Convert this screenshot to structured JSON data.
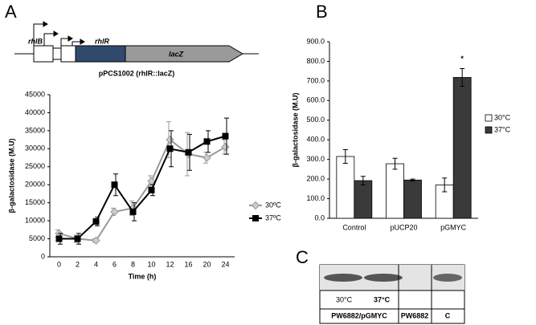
{
  "panels": [
    "A",
    "B",
    "C"
  ],
  "diagram": {
    "genes": [
      "rhlB",
      "rhlR",
      "lacZ"
    ],
    "caption": "pPCS1002 (rhlR::lacZ)"
  },
  "chart_data": [
    {
      "type": "line",
      "x_label": "Time (h)",
      "y_label": "β-galactosidase (M.U)",
      "categories": [
        "0",
        "2",
        "4",
        "6",
        "8",
        "10",
        "12",
        "16",
        "20",
        "24"
      ],
      "ylim": [
        0,
        45000
      ],
      "yticks": [
        0,
        5000,
        10000,
        15000,
        20000,
        25000,
        30000,
        35000,
        40000,
        45000
      ],
      "series": [
        {
          "name": "30ºC",
          "color": "#999999",
          "marker": "diamond",
          "values": [
            6500,
            5000,
            4500,
            12500,
            13500,
            21000,
            32500,
            28500,
            27500,
            30500
          ],
          "errors": [
            1000,
            1000,
            500,
            1000,
            2000,
            1500,
            5000,
            6000,
            1500,
            2000
          ]
        },
        {
          "name": "37ºC",
          "color": "#000000",
          "marker": "square",
          "values": [
            5000,
            5000,
            9800,
            20000,
            12500,
            18500,
            30000,
            29000,
            32000,
            33500
          ],
          "errors": [
            1500,
            1500,
            1200,
            3000,
            2500,
            1500,
            5000,
            5000,
            3000,
            5000
          ]
        }
      ]
    },
    {
      "type": "bar",
      "y_label": "β-galactosidase (M.U)",
      "annotation": "*",
      "categories": [
        "Control",
        "pUCP20",
        "pGMYC"
      ],
      "ylim": [
        0,
        900
      ],
      "yticks": [
        {
          "value": 0,
          "label": "0.0"
        },
        {
          "value": 100,
          "label": "100.0"
        },
        {
          "value": 200,
          "label": "200.0"
        },
        {
          "value": 300,
          "label": "300.0"
        },
        {
          "value": 400,
          "label": "400.0"
        },
        {
          "value": 500,
          "label": "500.0"
        },
        {
          "value": 600,
          "label": "600.0"
        },
        {
          "value": 700,
          "label": "700.0"
        },
        {
          "value": 800,
          "label": "800.0"
        },
        {
          "value": 900,
          "label": "900.0"
        }
      ],
      "series": [
        {
          "name": "30°C",
          "color": "#ffffff",
          "values": [
            315,
            278,
            170
          ],
          "errors": [
            35,
            28,
            35
          ]
        },
        {
          "name": "37°C",
          "color": "#3a3a3a",
          "values": [
            192,
            195,
            718
          ],
          "errors": [
            22,
            5,
            45
          ]
        }
      ]
    }
  ],
  "blot": {
    "temps": [
      "30°C",
      "37°C"
    ],
    "lanes": [
      "PW6882/pGMYC",
      "PW6882",
      "C"
    ]
  }
}
